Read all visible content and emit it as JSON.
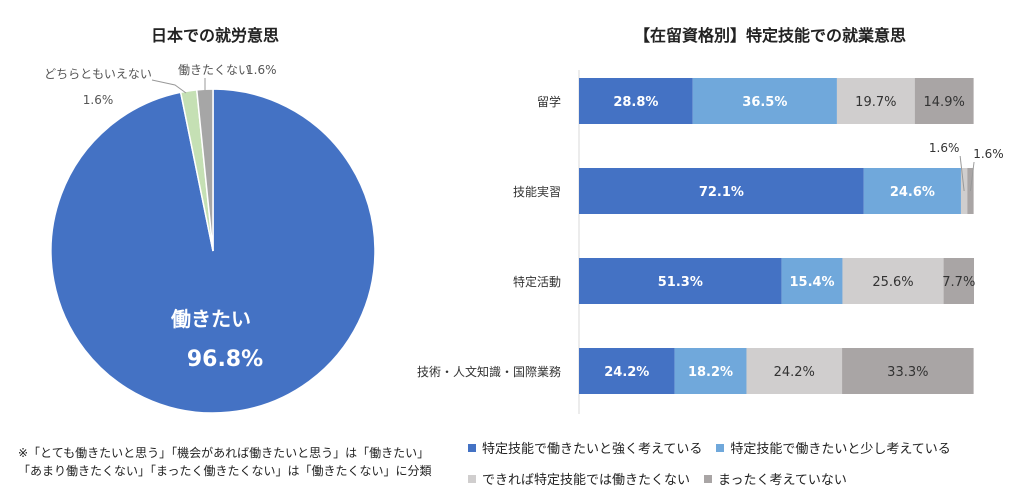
{
  "colors": {
    "strong": "#4472c4",
    "little": "#70a8db",
    "rather_not": "#d0cece",
    "not_at_all": "#a9a5a5",
    "pie_want": "#4472c4",
    "pie_neutral": "#c5e0b4",
    "pie_not": "#a6a6a6"
  },
  "pie": {
    "title": "日本での就労意思",
    "main_label": "働きたい",
    "main_value": "96.8%",
    "neutral_label": "どちらともいえない",
    "neutral_value": "1.6%",
    "not_label": "働きたくない",
    "not_value": "1.6%"
  },
  "bar": {
    "title": "【在留資格別】特定技能での就業意思"
  },
  "notes": {
    "line1": "※「とても働きたいと思う」「機会があれば働きたいと思う」は「働きたい」",
    "line2": "「あまり働きたくない」「まったく働きたくない」は「働きたくない」に分類"
  },
  "chart_data": [
    {
      "type": "pie",
      "title": "日本での就労意思",
      "slices": [
        {
          "label": "働きたい",
          "value": 96.8
        },
        {
          "label": "どちらともいえない",
          "value": 1.6
        },
        {
          "label": "働きたくない",
          "value": 1.6
        }
      ]
    },
    {
      "type": "bar",
      "orientation": "horizontal",
      "stacked": true,
      "title": "【在留資格別】特定技能での就業意思",
      "categories": [
        "留学",
        "技能実習",
        "特定活動",
        "技術・人文知識・国際業務"
      ],
      "series": [
        {
          "name": "特定技能で働きたいと強く考えている",
          "values": [
            28.8,
            72.1,
            51.3,
            24.2
          ],
          "labels": [
            "28.8%",
            "72.1%",
            "51.3%",
            "24.2%"
          ]
        },
        {
          "name": "特定技能で働きたいと少し考えている",
          "values": [
            36.5,
            24.6,
            15.4,
            18.2
          ],
          "labels": [
            "36.5%",
            "24.6%",
            "15.4%",
            "18.2%"
          ]
        },
        {
          "name": "できれば特定技能では働きたくない",
          "values": [
            19.7,
            1.6,
            25.6,
            24.2
          ],
          "labels": [
            "19.7%",
            "1.6%",
            "25.6%",
            "24.2%"
          ]
        },
        {
          "name": "まったく考えていない",
          "values": [
            14.9,
            1.6,
            7.7,
            33.3
          ],
          "labels": [
            "14.9%",
            "1.6%",
            "7.7%",
            "33.3%"
          ]
        }
      ],
      "xlim": [
        0,
        100
      ],
      "legend": "bottom"
    }
  ]
}
